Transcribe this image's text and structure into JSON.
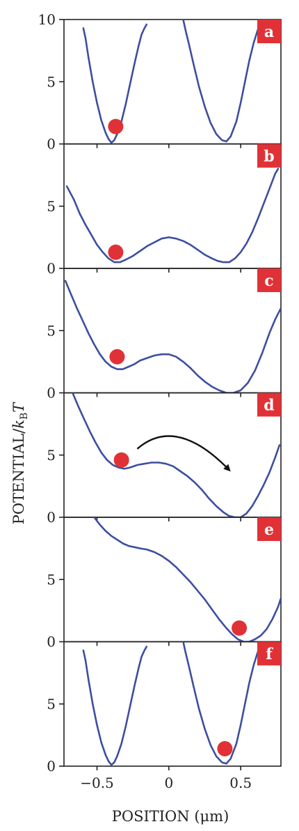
{
  "chart_data": {
    "type": "line",
    "xlabel_text": "POSITION (",
    "xlabel_unit": "μm",
    "xlabel_close": ")",
    "ylabel_text": "POTENTIAL/",
    "ylabel_kb": "k",
    "ylabel_sub": "B",
    "ylabel_T": "T",
    "x_ticks": [
      "−0.5",
      "0",
      "0.5"
    ],
    "x_tick_values": [
      -0.5,
      0,
      0.5
    ],
    "xlim": [
      -0.73,
      0.78
    ],
    "colors": {
      "curve": "#3d4ea0",
      "particle": "#e03236",
      "badge": "#e03236",
      "arrow": "#111111"
    },
    "panels": [
      {
        "label": "a",
        "ylim": [
          0,
          10
        ],
        "y_ticks": [
          "10",
          "5",
          "0"
        ],
        "y_tick_values": [
          10,
          5,
          0
        ],
        "particle": {
          "x": -0.37,
          "y": 1.4
        },
        "series": [
          {
            "x": [
              -0.595,
              -0.58,
              -0.56,
              -0.53,
              -0.5,
              -0.47,
              -0.44,
              -0.42,
              -0.4,
              -0.38,
              -0.36,
              -0.33,
              -0.3,
              -0.27,
              -0.24,
              -0.21,
              -0.19,
              -0.17,
              -0.155
            ],
            "y": [
              9.3,
              8.5,
              7.0,
              5.0,
              3.3,
              1.9,
              0.9,
              0.4,
              0.1,
              0.3,
              0.8,
              1.8,
              3.2,
              4.8,
              6.4,
              7.9,
              8.8,
              9.3,
              9.6
            ]
          },
          {
            "x": [
              0.1,
              0.115,
              0.14,
              0.17,
              0.21,
              0.25,
              0.29,
              0.33,
              0.37,
              0.4,
              0.43,
              0.47,
              0.5,
              0.53,
              0.56,
              0.59,
              0.62,
              0.645
            ],
            "y": [
              10.0,
              9.2,
              8.0,
              6.5,
              4.6,
              3.0,
              1.7,
              0.8,
              0.3,
              0.2,
              0.6,
              1.8,
              3.3,
              5.0,
              6.7,
              8.1,
              9.2,
              9.7
            ]
          }
        ]
      },
      {
        "label": "b",
        "ylim": [
          0,
          10
        ],
        "y_ticks": [
          "5",
          "0"
        ],
        "y_tick_values": [
          5,
          0
        ],
        "particle": {
          "x": -0.37,
          "y": 1.3
        },
        "series": [
          {
            "x": [
              -0.71,
              -0.66,
              -0.62,
              -0.58,
              -0.54,
              -0.5,
              -0.46,
              -0.42,
              -0.38,
              -0.34,
              -0.3,
              -0.25,
              -0.2,
              -0.15,
              -0.1,
              -0.05,
              0.0,
              0.05,
              0.1,
              0.15,
              0.2,
              0.25,
              0.3,
              0.34,
              0.38,
              0.42,
              0.46,
              0.5,
              0.54,
              0.58,
              0.62,
              0.66,
              0.7,
              0.74,
              0.76
            ],
            "y": [
              6.6,
              5.5,
              4.4,
              3.5,
              2.7,
              1.9,
              1.3,
              0.8,
              0.5,
              0.5,
              0.7,
              1.0,
              1.4,
              1.8,
              2.1,
              2.4,
              2.5,
              2.4,
              2.2,
              1.9,
              1.5,
              1.1,
              0.8,
              0.6,
              0.5,
              0.5,
              0.8,
              1.3,
              2.0,
              2.9,
              4.0,
              5.2,
              6.4,
              7.6,
              8.0
            ]
          }
        ]
      },
      {
        "label": "c",
        "ylim": [
          0,
          10
        ],
        "y_ticks": [
          "5",
          "0"
        ],
        "y_tick_values": [
          5,
          0
        ],
        "particle": {
          "x": -0.36,
          "y": 2.9
        },
        "series": [
          {
            "x": [
              -0.72,
              -0.68,
              -0.64,
              -0.6,
              -0.56,
              -0.52,
              -0.48,
              -0.44,
              -0.4,
              -0.36,
              -0.32,
              -0.28,
              -0.24,
              -0.2,
              -0.15,
              -0.1,
              -0.05,
              0.0,
              0.05,
              0.1,
              0.15,
              0.2,
              0.25,
              0.3,
              0.35,
              0.4,
              0.45,
              0.5,
              0.55,
              0.6,
              0.65,
              0.7,
              0.74,
              0.78
            ],
            "y": [
              9.0,
              7.9,
              6.8,
              5.8,
              4.8,
              3.9,
              3.1,
              2.5,
              2.1,
              1.9,
              1.9,
              2.1,
              2.3,
              2.6,
              2.8,
              3.0,
              3.1,
              3.1,
              2.9,
              2.5,
              2.0,
              1.4,
              0.9,
              0.5,
              0.2,
              0.0,
              0.0,
              0.2,
              0.8,
              1.8,
              3.2,
              4.8,
              5.9,
              6.8
            ]
          }
        ]
      },
      {
        "label": "d",
        "ylim": [
          0,
          10
        ],
        "y_ticks": [
          "5",
          "0"
        ],
        "y_tick_values": [
          5,
          0
        ],
        "particle": {
          "x": -0.33,
          "y": 4.6
        },
        "arrow": {
          "from": [
            -0.22,
            5.5
          ],
          "mid": [
            0.05,
            8.2
          ],
          "to": [
            0.42,
            3.8
          ]
        },
        "series": [
          {
            "x": [
              -0.67,
              -0.63,
              -0.59,
              -0.55,
              -0.51,
              -0.47,
              -0.43,
              -0.39,
              -0.35,
              -0.31,
              -0.27,
              -0.22,
              -0.17,
              -0.12,
              -0.07,
              -0.02,
              0.03,
              0.08,
              0.13,
              0.18,
              0.23,
              0.28,
              0.33,
              0.38,
              0.42,
              0.46,
              0.5,
              0.54,
              0.58,
              0.62,
              0.66,
              0.7,
              0.74,
              0.77
            ],
            "y": [
              10.0,
              8.9,
              7.9,
              6.9,
              6.0,
              5.2,
              4.6,
              4.2,
              4.0,
              3.9,
              4.0,
              4.2,
              4.3,
              4.4,
              4.4,
              4.3,
              4.1,
              3.7,
              3.3,
              2.8,
              2.2,
              1.5,
              0.9,
              0.4,
              0.1,
              0.0,
              0.0,
              0.3,
              0.9,
              1.7,
              2.6,
              3.6,
              4.8,
              5.8
            ]
          }
        ]
      },
      {
        "label": "e",
        "ylim": [
          0,
          10
        ],
        "y_ticks": [
          "5",
          "0"
        ],
        "y_tick_values": [
          5,
          0
        ],
        "particle": {
          "x": 0.49,
          "y": 1.1
        },
        "series": [
          {
            "x": [
              -0.52,
              -0.48,
              -0.44,
              -0.4,
              -0.36,
              -0.32,
              -0.28,
              -0.24,
              -0.2,
              -0.15,
              -0.1,
              -0.05,
              0.0,
              0.05,
              0.1,
              0.15,
              0.2,
              0.25,
              0.3,
              0.35,
              0.4,
              0.44,
              0.48,
              0.52,
              0.56,
              0.6,
              0.64,
              0.68,
              0.72,
              0.76,
              0.78
            ],
            "y": [
              10.0,
              9.4,
              8.9,
              8.5,
              8.2,
              7.9,
              7.7,
              7.6,
              7.5,
              7.4,
              7.2,
              6.9,
              6.5,
              6.0,
              5.4,
              4.8,
              4.1,
              3.4,
              2.6,
              1.8,
              1.1,
              0.6,
              0.2,
              0.0,
              0.0,
              0.2,
              0.5,
              1.0,
              1.8,
              2.8,
              3.5
            ]
          }
        ]
      },
      {
        "label": "f",
        "ylim": [
          0,
          10
        ],
        "y_ticks": [
          "5",
          "0"
        ],
        "y_tick_values": [
          5,
          0
        ],
        "particle": {
          "x": 0.39,
          "y": 1.4
        },
        "series": [
          {
            "x": [
              -0.595,
              -0.58,
              -0.56,
              -0.53,
              -0.5,
              -0.47,
              -0.44,
              -0.42,
              -0.4,
              -0.38,
              -0.36,
              -0.33,
              -0.3,
              -0.27,
              -0.24,
              -0.21,
              -0.19,
              -0.17,
              -0.155
            ],
            "y": [
              9.3,
              8.5,
              7.0,
              5.0,
              3.3,
              1.9,
              0.9,
              0.4,
              0.1,
              0.3,
              0.8,
              1.8,
              3.2,
              4.8,
              6.4,
              7.9,
              8.8,
              9.3,
              9.6
            ]
          },
          {
            "x": [
              0.1,
              0.115,
              0.14,
              0.17,
              0.21,
              0.25,
              0.29,
              0.33,
              0.37,
              0.4,
              0.43,
              0.47,
              0.5,
              0.53,
              0.56,
              0.59,
              0.62,
              0.645
            ],
            "y": [
              10.0,
              9.2,
              8.0,
              6.5,
              4.6,
              3.0,
              1.7,
              0.8,
              0.3,
              0.2,
              0.6,
              1.8,
              3.3,
              5.0,
              6.7,
              8.1,
              9.2,
              9.7
            ]
          }
        ]
      }
    ]
  }
}
